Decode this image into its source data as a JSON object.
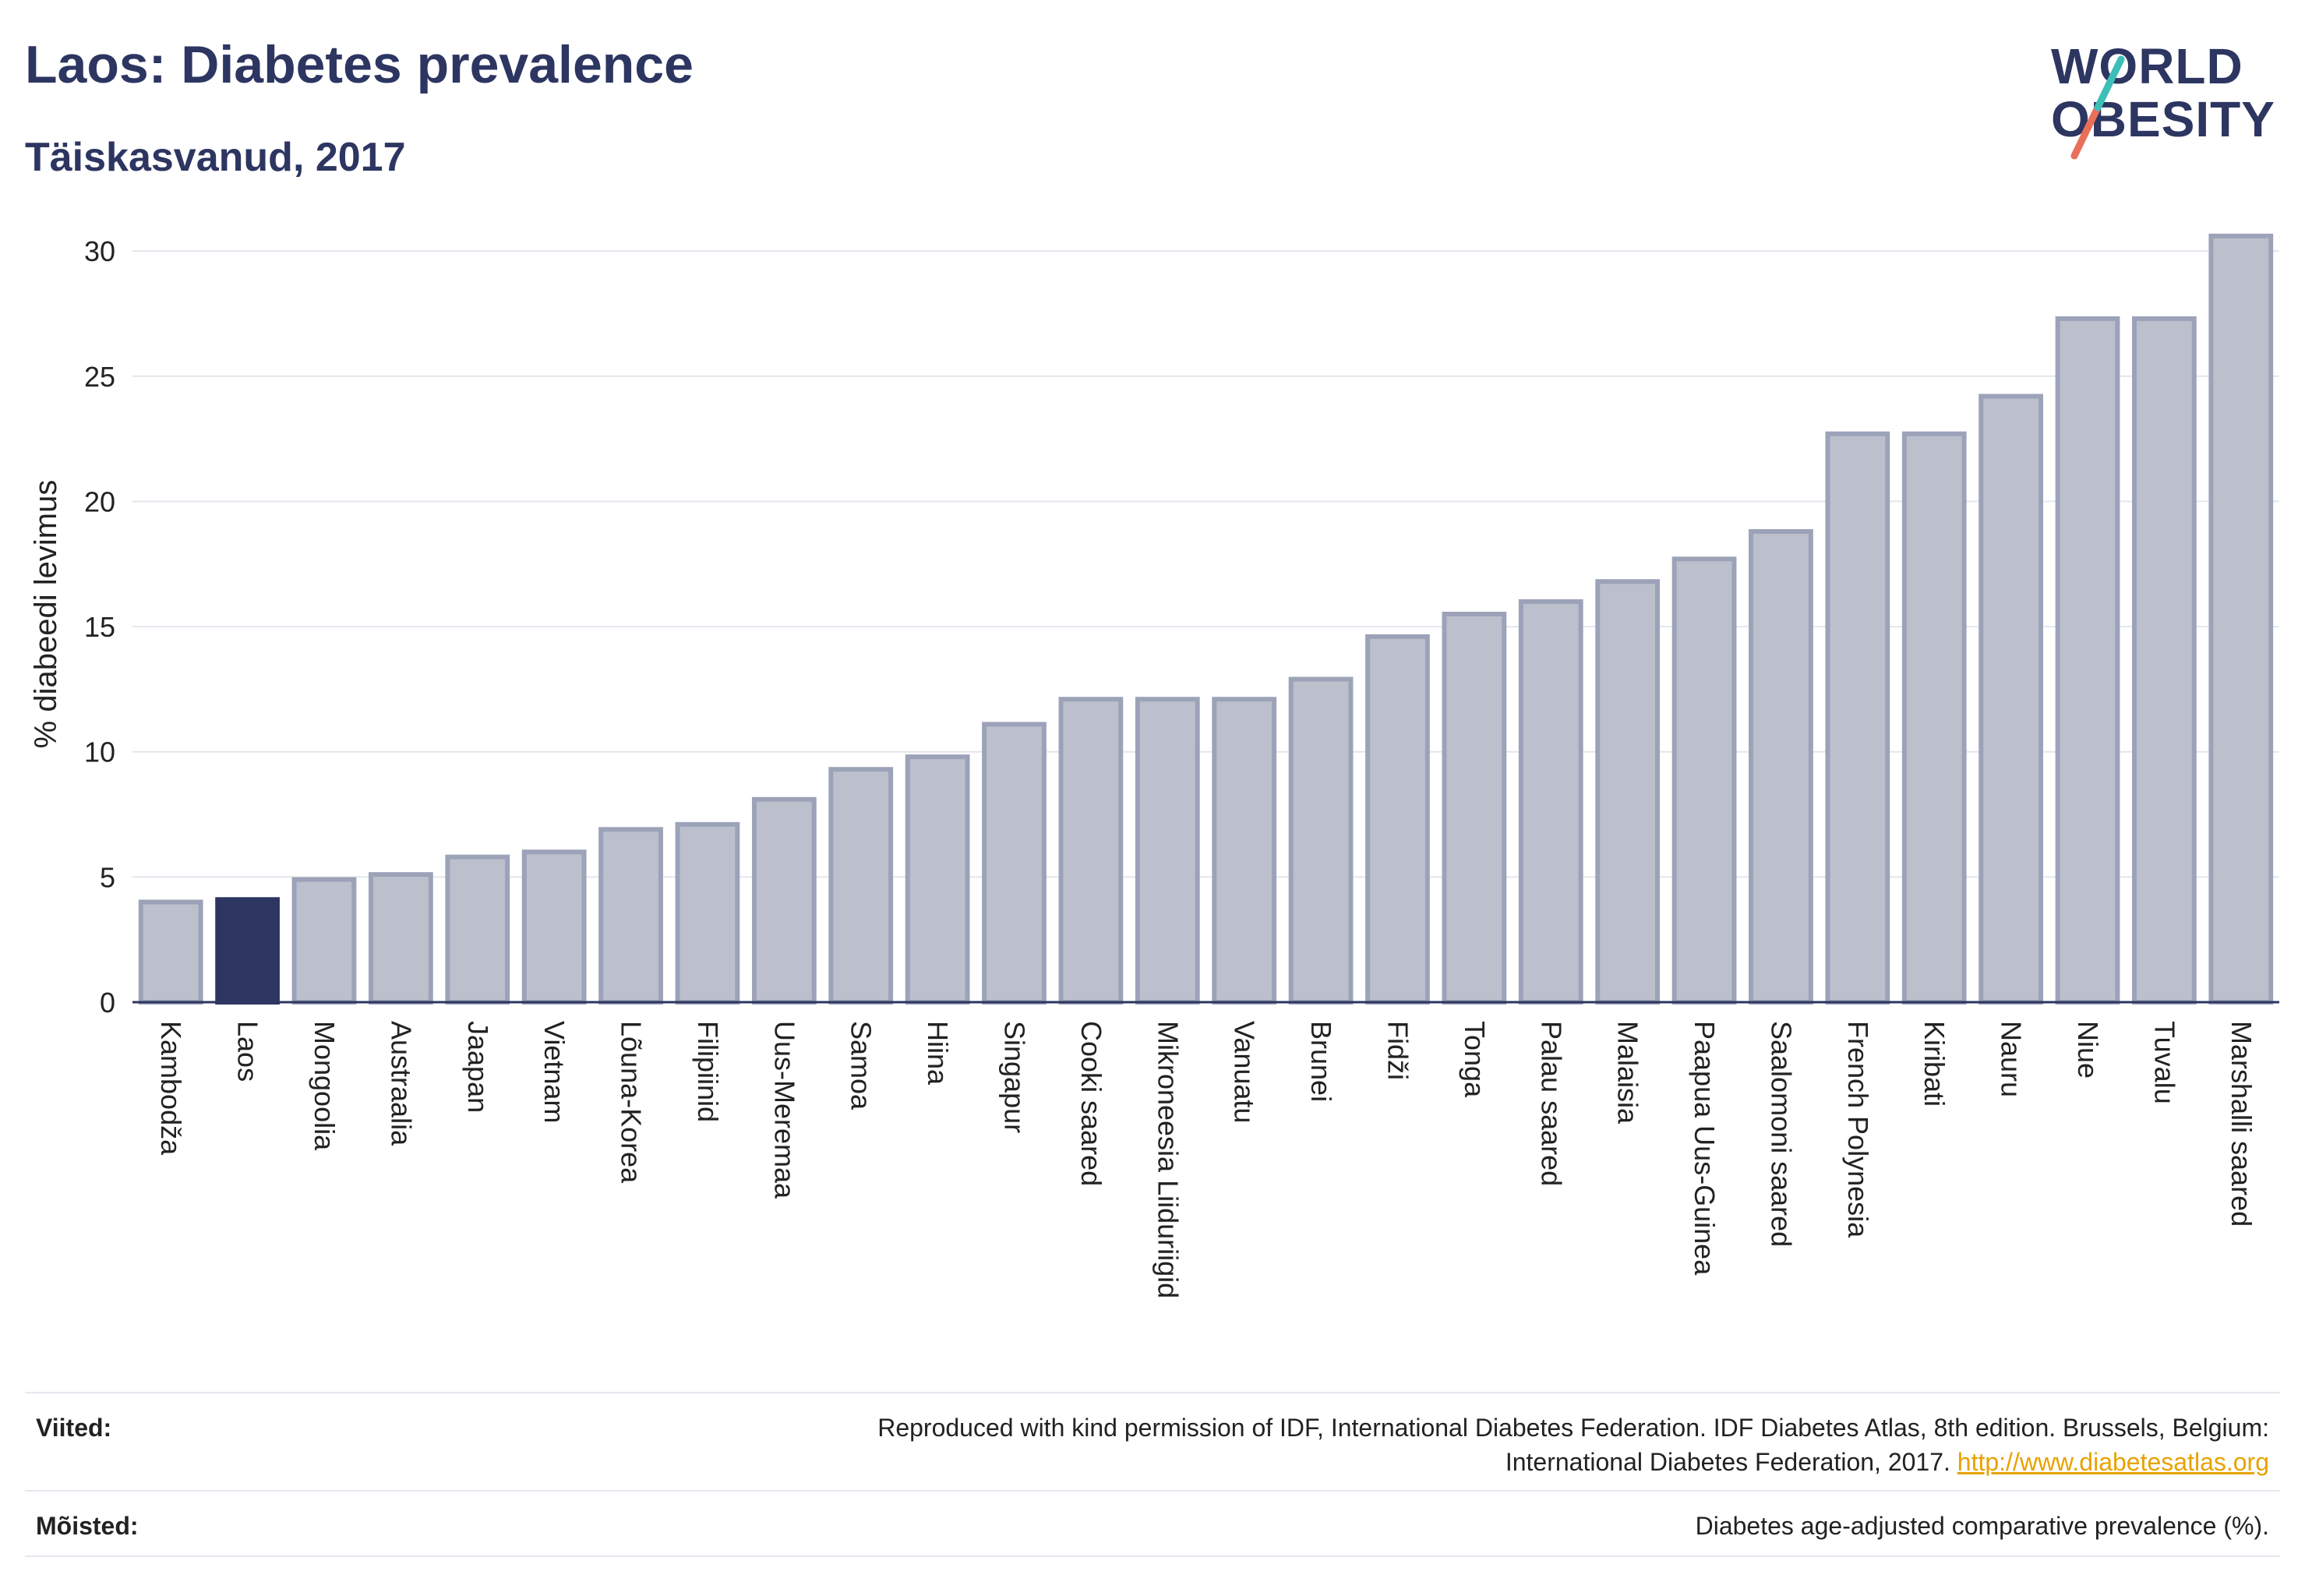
{
  "header": {
    "title": "Laos: Diabetes prevalence",
    "subtitle": "Täiskasvanud, 2017"
  },
  "logo": {
    "line1": "WORLD",
    "line2": "OBESITY",
    "accent_teal": "#3bbfb6",
    "accent_coral": "#e8705a"
  },
  "chart_data": {
    "type": "bar",
    "ylabel": "% diabeedi levimus",
    "xlabel": "",
    "ylim": [
      0,
      31
    ],
    "yticks": [
      0,
      5,
      10,
      15,
      20,
      25,
      30
    ],
    "grid": true,
    "categories": [
      "Kambodža",
      "Laos",
      "Mongoolia",
      "Austraalia",
      "Jaapan",
      "Vietnam",
      "Lõuna-Korea",
      "Filipiinid",
      "Uus-Meremaa",
      "Samoa",
      "Hiina",
      "Singapur",
      "Cooki saared",
      "Mikroneesia Liiduriigid",
      "Vanuatu",
      "Brunei",
      "Fidži",
      "Tonga",
      "Palau saared",
      "Malaisia",
      "Paapua Uus-Guinea",
      "Saalomoni saared",
      "French Polynesia",
      "Kiribati",
      "Nauru",
      "Niue",
      "Tuvalu",
      "Marshalli saared"
    ],
    "values": [
      4.0,
      4.1,
      4.9,
      5.1,
      5.8,
      6.0,
      6.9,
      7.1,
      8.1,
      9.3,
      9.8,
      11.1,
      12.1,
      12.1,
      12.1,
      12.9,
      14.6,
      15.5,
      16.0,
      16.8,
      17.7,
      18.8,
      22.7,
      22.7,
      24.2,
      27.3,
      27.3,
      30.6
    ],
    "highlight": "Laos",
    "bar_color": "#bcc0cd",
    "bar_edge": "#9ca2b8",
    "highlight_color": "#2d3561"
  },
  "footer": {
    "refs_label": "Viited:",
    "refs_text_1": "Reproduced with kind permission of IDF, International Diabetes Federation. IDF Diabetes Atlas, 8th edition. Brussels, Belgium:",
    "refs_text_2": "International Diabetes Federation, 2017.",
    "refs_link": "http://www.diabetesatlas.org",
    "defs_label": "Mõisted:",
    "defs_text": "Diabetes age-adjusted comparative prevalence (%)."
  }
}
